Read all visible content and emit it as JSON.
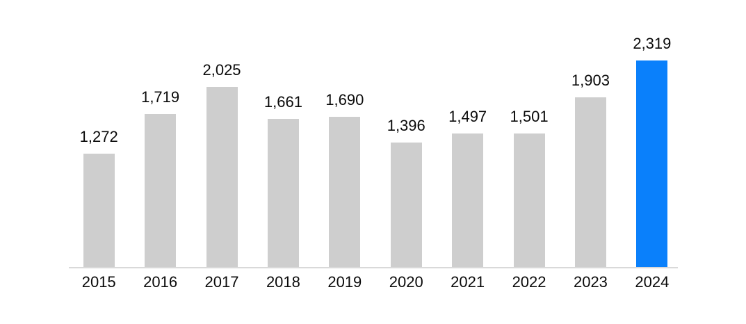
{
  "chart_data": {
    "type": "bar",
    "title": "",
    "xlabel": "",
    "ylabel": "",
    "categories": [
      "2015",
      "2016",
      "2017",
      "2018",
      "2019",
      "2020",
      "2021",
      "2022",
      "2023",
      "2024"
    ],
    "values": [
      1272,
      1719,
      2025,
      1661,
      1690,
      1396,
      1497,
      1501,
      1903,
      2319
    ],
    "value_labels": [
      "1,272",
      "1,719",
      "2,025",
      "1,661",
      "1,690",
      "1,396",
      "1,497",
      "1,501",
      "1,903",
      "2,319"
    ],
    "ylim": [
      0,
      3000
    ],
    "grid": "off",
    "legend": "none",
    "data_labels_position": "above-bars",
    "highlight_index": 9,
    "colors": {
      "bar": "#cecece",
      "highlight_bar": "#0a80fb",
      "axis_line": "#d9d9d9",
      "label_text": "#0a0a0a",
      "background": "#ffffff"
    }
  }
}
